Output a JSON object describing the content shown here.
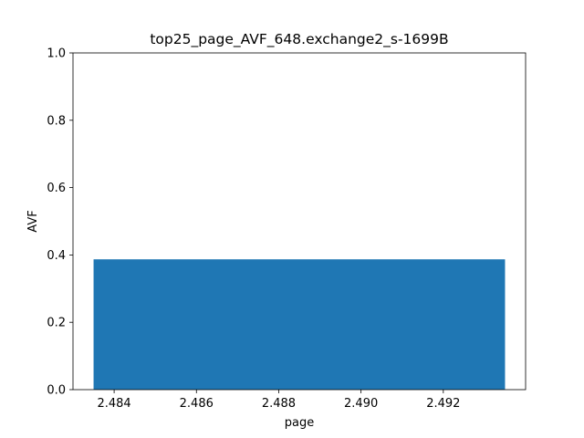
{
  "chart_data": {
    "type": "bar",
    "title": "top25_page_AVF_648.exchange2_s-1699B",
    "xlabel": "page",
    "ylabel": "AVF",
    "xlim": [
      2.483,
      2.494
    ],
    "ylim": [
      0.0,
      1.0
    ],
    "xticks": [
      2.484,
      2.486,
      2.488,
      2.49,
      2.492
    ],
    "xtick_labels": [
      "2.484",
      "2.486",
      "2.488",
      "2.490",
      "2.492"
    ],
    "yticks": [
      0.0,
      0.2,
      0.4,
      0.6,
      0.8,
      1.0
    ],
    "ytick_labels": [
      "0.0",
      "0.2",
      "0.4",
      "0.6",
      "0.8",
      "1.0"
    ],
    "bars": [
      {
        "x_start": 2.4835,
        "x_end": 2.4935,
        "value": 0.387
      }
    ],
    "bar_color": "#1f77b4",
    "grid": false,
    "legend": "none"
  }
}
